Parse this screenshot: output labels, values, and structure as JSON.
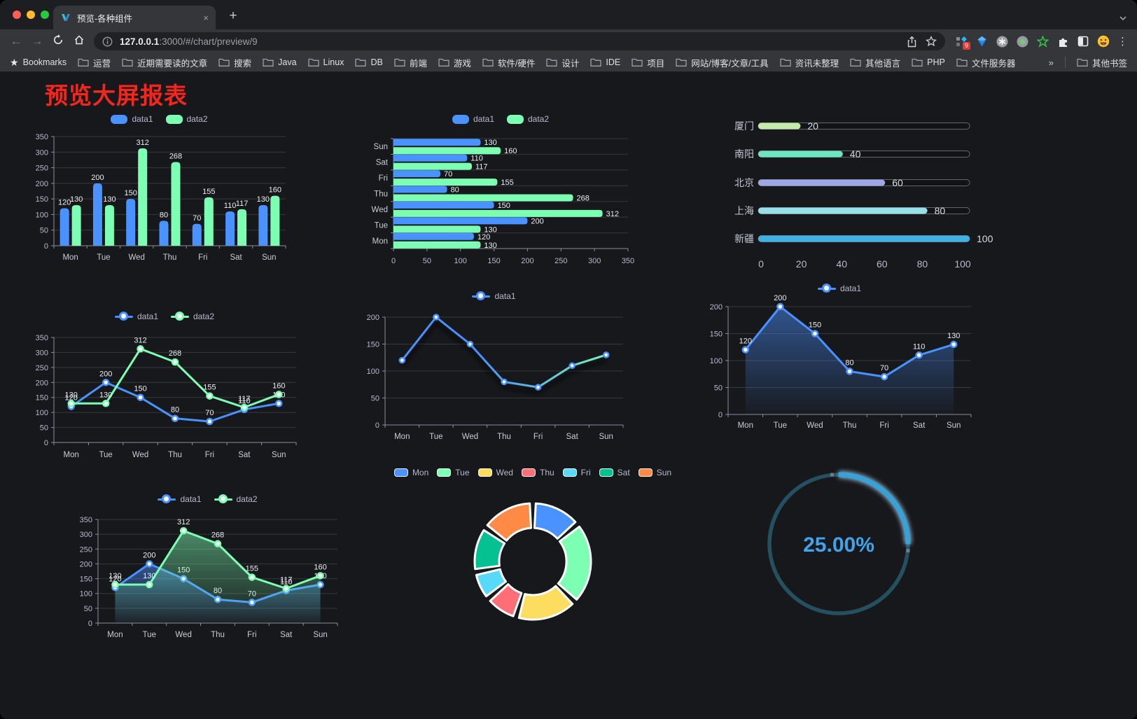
{
  "browser": {
    "tab_title": "预览-各种组件",
    "url_host": "127.0.0.1",
    "url_rest": ":3000/#/chart/preview/9",
    "bookmarks_label": "Bookmarks",
    "bookmarks": [
      "运营",
      "近期需要读的文章",
      "搜索",
      "Java",
      "Linux",
      "DB",
      "前端",
      "游戏",
      "软件/硬件",
      "设计",
      "IDE",
      "项目",
      "网站/博客/文章/工具",
      "资讯未整理",
      "其他语言",
      "PHP",
      "文件服务器"
    ],
    "bookmarks_overflow": "»",
    "other_bookmarks": "其他书签",
    "extension_badge": "9",
    "new_tab_label": "+",
    "tab_close_label": "×"
  },
  "page": {
    "title": "预览大屏报表",
    "title_color": "#f5261c",
    "background": "#17181c",
    "text_color": "#b9b8ce"
  },
  "chart_data": [
    {
      "id": "c1",
      "type": "bar",
      "legend_icon": "rect",
      "labels": true,
      "categories": [
        "Mon",
        "Tue",
        "Wed",
        "Thu",
        "Fri",
        "Sat",
        "Sun"
      ],
      "ylim": [
        0,
        350
      ],
      "ytick_step": 50,
      "grid": true,
      "legend_position": "top",
      "series": [
        {
          "name": "data1",
          "color": "#4992ff",
          "values": [
            120,
            200,
            150,
            80,
            70,
            110,
            130
          ]
        },
        {
          "name": "data2",
          "color": "#7cffb2",
          "values": [
            130,
            130,
            312,
            268,
            155,
            117,
            160
          ]
        }
      ]
    },
    {
      "id": "c2",
      "type": "hbar",
      "legend_icon": "rect",
      "labels": true,
      "categories": [
        "Mon",
        "Tue",
        "Wed",
        "Thu",
        "Fri",
        "Sat",
        "Sun"
      ],
      "xlim": [
        0,
        350
      ],
      "xtick_step": 50,
      "grid": true,
      "legend_position": "top",
      "series": [
        {
          "name": "data1",
          "color": "#4992ff",
          "values": [
            120,
            200,
            150,
            80,
            70,
            110,
            130
          ]
        },
        {
          "name": "data2",
          "color": "#7cffb2",
          "values": [
            130,
            130,
            312,
            268,
            155,
            117,
            160
          ]
        }
      ]
    },
    {
      "id": "c3",
      "type": "progress",
      "max": 100,
      "ticks": [
        0,
        20,
        40,
        60,
        80,
        100
      ],
      "items": [
        {
          "label": "厦门",
          "value": 20,
          "color": "#c4ebad"
        },
        {
          "label": "南阳",
          "value": 40,
          "color": "#6be6c1"
        },
        {
          "label": "北京",
          "value": 60,
          "color": "#a0a7e6"
        },
        {
          "label": "上海",
          "value": 80,
          "color": "#96dee8"
        },
        {
          "label": "新疆",
          "value": 100,
          "color": "#3fb1e3"
        }
      ]
    },
    {
      "id": "c4",
      "type": "line",
      "legend_icon": "line",
      "labels": true,
      "categories": [
        "Mon",
        "Tue",
        "Wed",
        "Thu",
        "Fri",
        "Sat",
        "Sun"
      ],
      "ylim": [
        0,
        350
      ],
      "ytick_step": 50,
      "grid": true,
      "legend_position": "top",
      "series": [
        {
          "name": "data1",
          "color": "#4992ff",
          "values": [
            120,
            200,
            150,
            80,
            70,
            110,
            130
          ]
        },
        {
          "name": "data2",
          "color": "#7cffb2",
          "values": [
            130,
            130,
            312,
            268,
            155,
            117,
            160
          ]
        }
      ]
    },
    {
      "id": "c5",
      "type": "line",
      "legend_icon": "line",
      "labels": false,
      "categories": [
        "Mon",
        "Tue",
        "Wed",
        "Thu",
        "Fri",
        "Sat",
        "Sun"
      ],
      "ylim": [
        0,
        200
      ],
      "ytick_step": 50,
      "grid": true,
      "legend_position": "top",
      "series": [
        {
          "name": "data1",
          "color": "#4992ff",
          "gradient": [
            "#4992ff",
            "#7cffb2"
          ],
          "shadow": true,
          "values": [
            120,
            200,
            150,
            80,
            70,
            110,
            130
          ]
        }
      ]
    },
    {
      "id": "c6",
      "type": "line",
      "legend_icon": "line",
      "labels": true,
      "categories": [
        "Mon",
        "Tue",
        "Wed",
        "Thu",
        "Fri",
        "Sat",
        "Sun"
      ],
      "ylim": [
        0,
        200
      ],
      "ytick_step": 50,
      "grid": true,
      "legend_position": "top",
      "series": [
        {
          "name": "data1",
          "color": "#4992ff",
          "area": true,
          "values": [
            120,
            200,
            150,
            80,
            70,
            110,
            130
          ]
        }
      ]
    },
    {
      "id": "c7",
      "type": "line",
      "legend_icon": "line",
      "labels": true,
      "categories": [
        "Mon",
        "Tue",
        "Wed",
        "Thu",
        "Fri",
        "Sat",
        "Sun"
      ],
      "ylim": [
        0,
        350
      ],
      "ytick_step": 50,
      "grid": true,
      "legend_position": "top",
      "series": [
        {
          "name": "data1",
          "color": "#4992ff",
          "area": true,
          "values": [
            120,
            200,
            150,
            80,
            70,
            110,
            130
          ]
        },
        {
          "name": "data2",
          "color": "#7cffb2",
          "area": true,
          "values": [
            130,
            130,
            312,
            268,
            155,
            117,
            160
          ]
        }
      ]
    },
    {
      "id": "c8",
      "type": "donut",
      "legend_icon": "pie",
      "legend_position": "top",
      "items": [
        {
          "name": "Mon",
          "value": 120,
          "color": "#4992ff"
        },
        {
          "name": "Tue",
          "value": 200,
          "color": "#7cffb2"
        },
        {
          "name": "Wed",
          "value": 150,
          "color": "#fddd60"
        },
        {
          "name": "Thu",
          "value": 80,
          "color": "#ff6e76"
        },
        {
          "name": "Fri",
          "value": 70,
          "color": "#58d9f9"
        },
        {
          "name": "Sat",
          "value": 110,
          "color": "#05c091"
        },
        {
          "name": "Sun",
          "value": 130,
          "color": "#ff8a45"
        }
      ]
    },
    {
      "id": "c9",
      "type": "gauge",
      "value_text": "25.00%",
      "percent": 25,
      "color": "#37a2da",
      "glow_color": "#a8d9f5",
      "track_color": "#24505f",
      "text_color": "#41a3ea"
    }
  ]
}
